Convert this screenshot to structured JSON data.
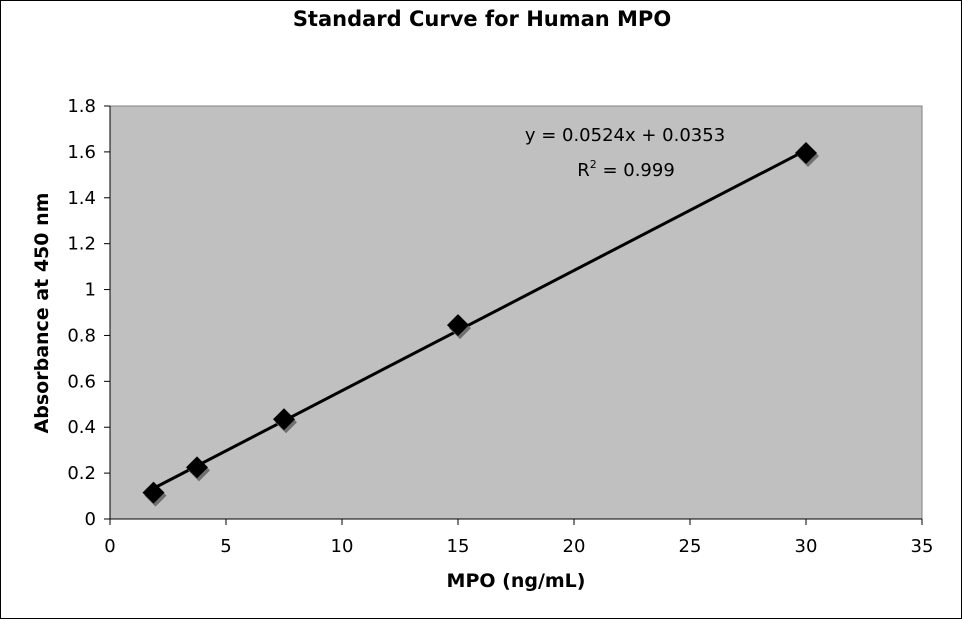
{
  "chart_data": {
    "type": "scatter",
    "title": "Standard Curve for Human MPO",
    "xlabel": "MPO (ng/mL)",
    "ylabel": "Absorbance at 450 nm",
    "xlim": [
      0,
      35
    ],
    "ylim": [
      0,
      1.8
    ],
    "xticks": [
      "0",
      "5",
      "10",
      "15",
      "20",
      "25",
      "30",
      "35"
    ],
    "yticks": [
      "0",
      "0.2",
      "0.4",
      "0.6",
      "0.8",
      "1",
      "1.2",
      "1.4",
      "1.6",
      "1.8"
    ],
    "points": [
      {
        "x": 1.875,
        "y": 0.115
      },
      {
        "x": 3.75,
        "y": 0.225
      },
      {
        "x": 7.5,
        "y": 0.435
      },
      {
        "x": 15,
        "y": 0.845
      },
      {
        "x": 30,
        "y": 1.595
      }
    ],
    "trendline": {
      "type": "linear",
      "slope": 0.0524,
      "intercept": 0.0353
    },
    "equation": "y = 0.0524x + 0.0353",
    "r2_prefix": "R",
    "r2_exp": "2",
    "r2_value": " = 0.999",
    "plot_background": "#c0c0c0",
    "marker_color": "#000000",
    "grid": false,
    "legend": "none"
  }
}
